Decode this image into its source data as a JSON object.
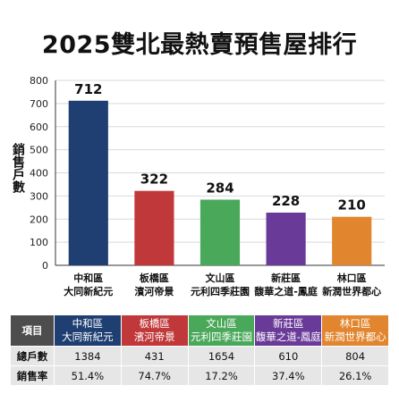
{
  "title": "2025雙北最熱賣預售屋排行",
  "colors": {
    "bar_1": "#1f3f73",
    "bar_2": "#c0383a",
    "bar_3": "#4aa85a",
    "bar_4": "#6a3a99",
    "bar_5": "#e1862e",
    "grid": "#d9d9d9",
    "axis": "#333333"
  },
  "chart_data": {
    "type": "bar",
    "title": "2025雙北最熱賣預售屋排行",
    "ylabel": "銷售戶數",
    "xlabel": "",
    "ylim": [
      0,
      800
    ],
    "yticks": [
      0,
      100,
      200,
      300,
      400,
      500,
      600,
      700,
      800
    ],
    "grid": true,
    "categories": [
      {
        "district": "中和區",
        "project": "大同新紀元"
      },
      {
        "district": "板橋區",
        "project": "濱河帝景"
      },
      {
        "district": "文山區",
        "project": "元利四季莊園"
      },
      {
        "district": "新莊區",
        "project": "馥華之道-鳳庭"
      },
      {
        "district": "林口區",
        "project": "新潤世界都心"
      }
    ],
    "values": [
      712,
      322,
      284,
      228,
      210
    ]
  },
  "table": {
    "header_label": "項目",
    "rows": [
      {
        "label": "總戶數",
        "values": [
          "1384",
          "431",
          "1654",
          "610",
          "804"
        ]
      },
      {
        "label": "銷售率",
        "values": [
          "51.4%",
          "74.7%",
          "17.2%",
          "37.4%",
          "26.1%"
        ]
      }
    ]
  }
}
